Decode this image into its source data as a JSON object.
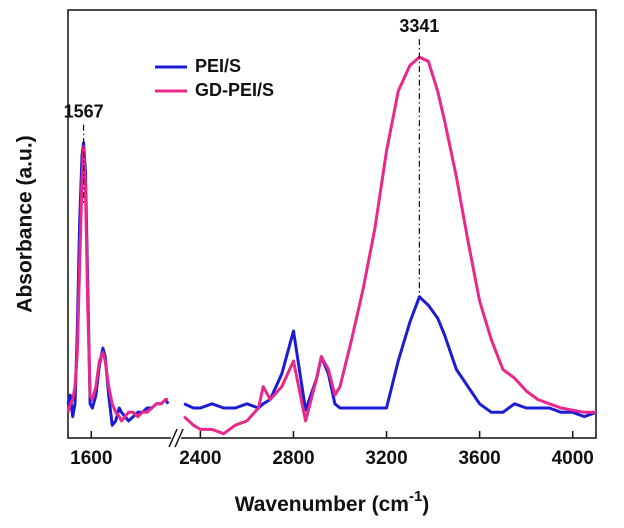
{
  "chart_data": {
    "type": "line",
    "x_label": [
      "Wavenumber (cm",
      "-1",
      ")"
    ],
    "y_label": "Absorbance (a.u.)",
    "x": [
      1500,
      1510,
      1520,
      1530,
      1540,
      1550,
      1560,
      1567,
      1575,
      1585,
      1595,
      1605,
      1620,
      1635,
      1650,
      1660,
      1675,
      1690,
      1705,
      1720,
      1730,
      1745,
      1760,
      1780,
      1800,
      1820,
      1840,
      1860,
      1880,
      1900,
      1920,
      1930,
      2330,
      2370,
      2400,
      2450,
      2500,
      2550,
      2600,
      2650,
      2670,
      2700,
      2750,
      2800,
      2852,
      2900,
      2920,
      2950,
      2978,
      3000,
      3050,
      3100,
      3150,
      3200,
      3250,
      3300,
      3341,
      3380,
      3420,
      3450,
      3500,
      3550,
      3600,
      3650,
      3700,
      3750,
      3800,
      3850,
      3900,
      3950,
      4000,
      4050,
      4100
    ],
    "series": [
      {
        "name": "PEI/S",
        "color": "#1c1cd4",
        "values": [
          8,
          10,
          5,
          8,
          25,
          50,
          66,
          69,
          62,
          35,
          8,
          7,
          10,
          17,
          21,
          19,
          10,
          3,
          4,
          7,
          6,
          5,
          4,
          5,
          6,
          6,
          7,
          7,
          8,
          8,
          9,
          8,
          8,
          7,
          7,
          8,
          7,
          7,
          8,
          7,
          8,
          9,
          15,
          25,
          6.5,
          14,
          19,
          15,
          8,
          7,
          7,
          7,
          7,
          7,
          18,
          27,
          33,
          31,
          28,
          24,
          16,
          12,
          8,
          6,
          6,
          8,
          7,
          7,
          7,
          6,
          6,
          5,
          6
        ]
      },
      {
        "name": "GD-PEI/S",
        "color": "#e8288a",
        "values": [
          6,
          8,
          9,
          12,
          20,
          40,
          60,
          68,
          58,
          30,
          10,
          9,
          12,
          18,
          20,
          18,
          12,
          8,
          6,
          5,
          4,
          5,
          6,
          6,
          5,
          6,
          6,
          7,
          8,
          8,
          9,
          9,
          5,
          3,
          2,
          2,
          1,
          3,
          4,
          7,
          12,
          9,
          12,
          18,
          4,
          14,
          19,
          16,
          10,
          12,
          23,
          35,
          49,
          67,
          81,
          87,
          89,
          88,
          81,
          74,
          61,
          46,
          32,
          23,
          16,
          14,
          11,
          9,
          8,
          7,
          6.5,
          6,
          6
        ]
      }
    ],
    "xlim": [
      1500,
      4100
    ],
    "x_break": [
      1930,
      2330
    ],
    "xticks": [
      1600,
      2400,
      2800,
      3200,
      3600,
      4000
    ],
    "ylim": [
      0,
      100
    ],
    "legend": "upper left",
    "annotations": [
      {
        "text": "1567",
        "x": 1567,
        "y": 69
      },
      {
        "text": "3341",
        "x": 3341,
        "y": 89
      }
    ]
  }
}
